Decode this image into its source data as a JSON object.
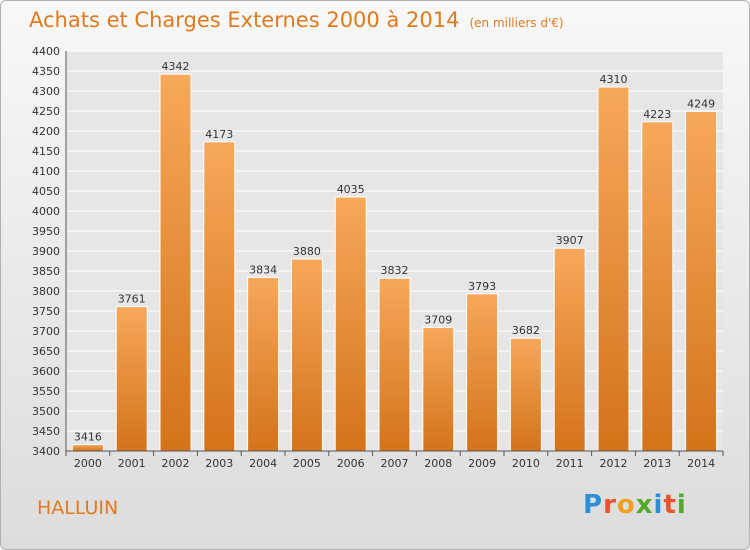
{
  "chart_data": {
    "type": "bar",
    "title": "Achats et Charges Externes 2000 à 2014",
    "subtitle": "(en milliers d'€)",
    "xlabel": "",
    "ylabel": "",
    "categories": [
      "2000",
      "2001",
      "2002",
      "2003",
      "2004",
      "2005",
      "2006",
      "2007",
      "2008",
      "2009",
      "2010",
      "2011",
      "2012",
      "2013",
      "2014"
    ],
    "values": [
      3416,
      3761,
      4342,
      4173,
      3834,
      3880,
      4035,
      3832,
      3709,
      3793,
      3682,
      3907,
      4310,
      4223,
      4249
    ],
    "ylim": [
      3400,
      4400
    ],
    "yticks": [
      3400,
      3450,
      3500,
      3550,
      3600,
      3650,
      3700,
      3750,
      3800,
      3850,
      3900,
      3950,
      4000,
      4050,
      4100,
      4150,
      4200,
      4250,
      4300,
      4350,
      4400
    ],
    "grid": true,
    "legend": "none",
    "bar_color": "#f0a04a",
    "bar_color_dark": "#d4731a"
  },
  "footer": {
    "city": "HALLUIN",
    "logo_letters": [
      "P",
      "r",
      "o",
      "x",
      "i",
      "t",
      "i"
    ],
    "logo_colors": [
      "#2b8fd6",
      "#e8542b",
      "#f0a020",
      "#55a82b",
      "#2b8fd6",
      "#e8542b",
      "#55a82b"
    ]
  }
}
